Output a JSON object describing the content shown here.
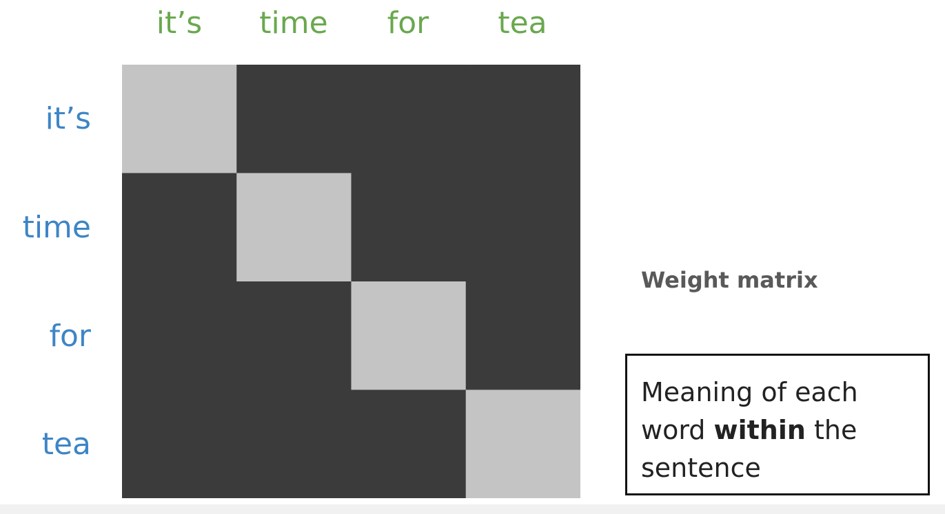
{
  "column_labels": [
    "it’s",
    "time",
    "for",
    "tea"
  ],
  "row_labels": [
    "it’s",
    "time",
    "for",
    "tea"
  ],
  "matrix": {
    "values": [
      [
        1,
        0,
        0,
        0
      ],
      [
        0,
        1,
        0,
        0
      ],
      [
        0,
        0,
        1,
        0
      ],
      [
        0,
        0,
        0,
        1
      ]
    ]
  },
  "caption": "Weight matrix",
  "note": {
    "prefix": "Meaning of each word ",
    "bold": "within",
    "suffix": " the sentence"
  },
  "colors": {
    "column_label": "#6aa84f",
    "row_label": "#3d85c6",
    "cell_on": "#c4c4c4",
    "cell_off": "#3b3b3b"
  }
}
